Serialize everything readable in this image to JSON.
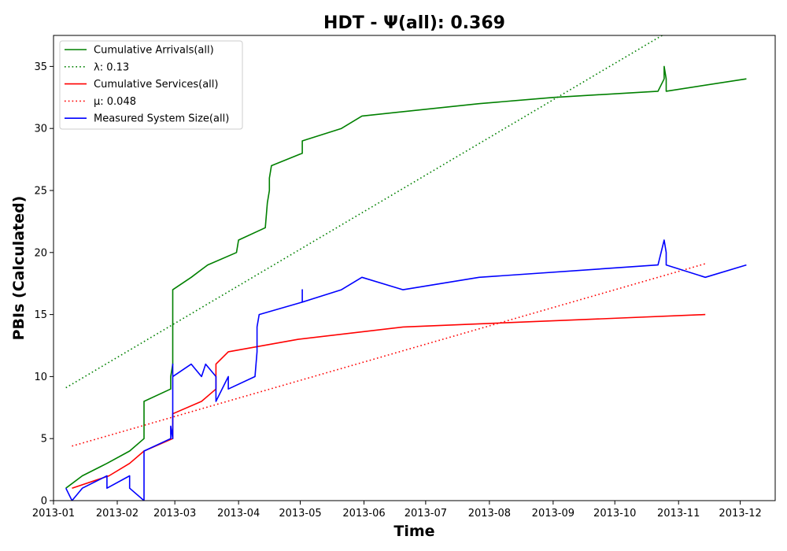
{
  "chart_data": {
    "type": "line",
    "title": "HDT -  Ψ(all): 0.369",
    "xlabel": "Time",
    "ylabel": "PBIs (Calculated)",
    "xlim": [
      "2013-01-01",
      "2013-12-18"
    ],
    "ylim": [
      0,
      37.5
    ],
    "x_ticks": [
      "2013-01",
      "2013-02",
      "2013-03",
      "2013-04",
      "2013-05",
      "2013-06",
      "2013-07",
      "2013-08",
      "2013-09",
      "2013-10",
      "2013-11",
      "2013-12"
    ],
    "y_ticks": [
      0,
      5,
      10,
      15,
      20,
      25,
      30,
      35
    ],
    "grid": false,
    "legend_position": "top-left",
    "series": [
      {
        "name": "Cumulative Arrivals(all)",
        "color": "#008000",
        "style": "solid",
        "x": [
          "2013-01-07",
          "2013-01-15",
          "2013-01-27",
          "2013-02-07",
          "2013-02-14",
          "2013-02-14",
          "2013-02-27",
          "2013-02-27",
          "2013-02-28",
          "2013-02-28",
          "2013-03-09",
          "2013-03-17",
          "2013-03-31",
          "2013-04-01",
          "2013-04-14",
          "2013-04-15",
          "2013-04-16",
          "2013-04-16",
          "2013-04-17",
          "2013-05-02",
          "2013-05-02",
          "2013-05-21",
          "2013-05-31",
          "2013-07-27",
          "2013-09-01",
          "2013-10-22",
          "2013-10-25",
          "2013-10-25",
          "2013-10-26",
          "2013-10-26",
          "2013-12-04"
        ],
        "y": [
          1,
          2,
          3,
          4,
          5,
          8,
          9,
          10,
          11,
          17,
          18,
          19,
          20,
          21,
          22,
          24,
          25,
          26,
          27,
          28,
          29,
          30,
          31,
          32,
          32.5,
          33,
          34,
          35,
          34,
          33,
          34
        ]
      },
      {
        "name": "λ: 0.13",
        "color": "#008000",
        "style": "dotted",
        "x": [
          "2013-01-07",
          "2013-10-24"
        ],
        "y": [
          9.1,
          37.5
        ]
      },
      {
        "name": "Cumulative Services(all)",
        "color": "#ff0000",
        "style": "solid",
        "x": [
          "2013-01-10",
          "2013-01-28",
          "2013-02-07",
          "2013-02-14",
          "2013-02-28",
          "2013-02-28",
          "2013-03-14",
          "2013-03-21",
          "2013-03-21",
          "2013-03-27",
          "2013-04-30",
          "2013-06-20",
          "2013-11-14"
        ],
        "y": [
          1,
          2,
          3,
          4,
          5,
          7,
          8,
          9,
          11,
          12,
          13,
          14,
          15
        ]
      },
      {
        "name": "μ: 0.048",
        "color": "#ff0000",
        "style": "dotted",
        "x": [
          "2013-01-10",
          "2013-11-14"
        ],
        "y": [
          4.4,
          19.1
        ]
      },
      {
        "name": "Measured System Size(all)",
        "color": "#0000ff",
        "style": "solid",
        "x": [
          "2013-01-07",
          "2013-01-10",
          "2013-01-15",
          "2013-01-27",
          "2013-01-27",
          "2013-02-07",
          "2013-02-07",
          "2013-02-14",
          "2013-02-14",
          "2013-02-27",
          "2013-02-27",
          "2013-02-28",
          "2013-02-28",
          "2013-02-28",
          "2013-03-09",
          "2013-03-14",
          "2013-03-16",
          "2013-03-21",
          "2013-03-21",
          "2013-03-27",
          "2013-03-27",
          "2013-04-09",
          "2013-04-10",
          "2013-04-10",
          "2013-04-11",
          "2013-05-02",
          "2013-05-02",
          "2013-05-02",
          "2013-05-21",
          "2013-05-31",
          "2013-06-20",
          "2013-07-27",
          "2013-10-22",
          "2013-10-25",
          "2013-10-26",
          "2013-10-26",
          "2013-11-14",
          "2013-12-04"
        ],
        "y": [
          1,
          0,
          1,
          2,
          1,
          2,
          1,
          0,
          4,
          5,
          6,
          5,
          11,
          10,
          11,
          10,
          11,
          10,
          8,
          10,
          9,
          10,
          12,
          14,
          15,
          16,
          17,
          16,
          17,
          18,
          17,
          18,
          19,
          21,
          20,
          19,
          18,
          19
        ]
      }
    ]
  }
}
